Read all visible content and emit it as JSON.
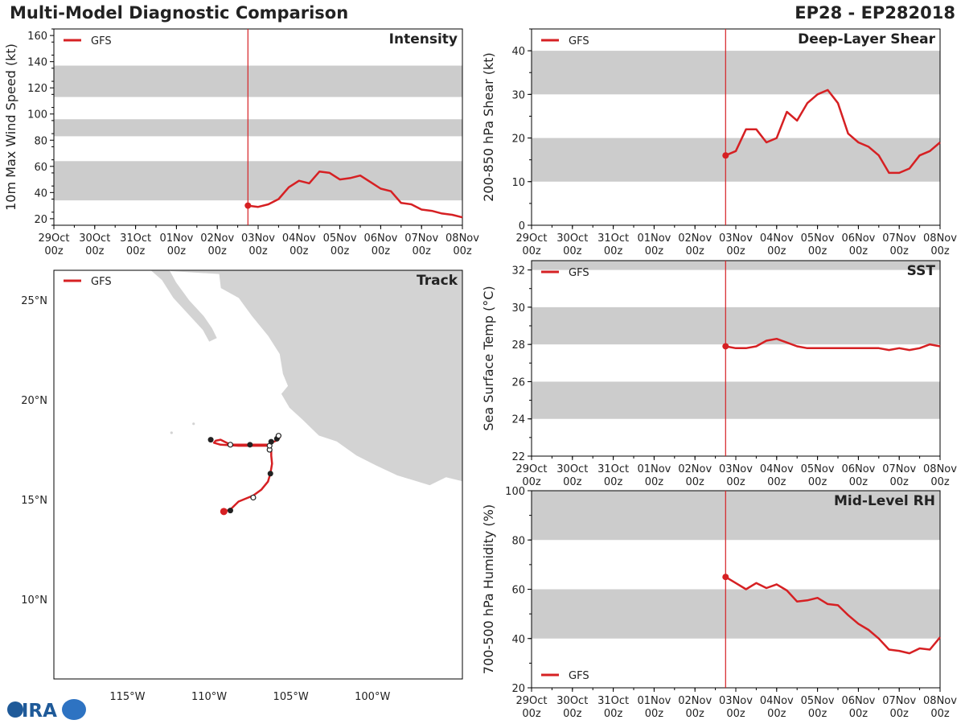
{
  "header": {
    "title": "Multi-Model Diagnostic Comparison",
    "storm": "EP28 - EP282018"
  },
  "logo": {
    "text": "CIRA"
  },
  "colors": {
    "series": "#d62023",
    "shade": "#cccccc",
    "land": "#d3d3d3",
    "axis": "#000000"
  },
  "time_axis": {
    "labels": [
      "29Oct",
      "30Oct",
      "31Oct",
      "01Nov",
      "02Nov",
      "03Nov",
      "04Nov",
      "05Nov",
      "06Nov",
      "07Nov",
      "08Nov"
    ],
    "sublabel": "00z",
    "init_day": 4.75
  },
  "chart_data": [
    {
      "id": "intensity",
      "type": "line",
      "title": "Intensity",
      "ylabel": "10m Max Wind Speed (kt)",
      "ylim": [
        15,
        165
      ],
      "yticks": [
        20,
        40,
        60,
        80,
        100,
        120,
        140,
        160
      ],
      "bands": [
        [
          34,
          64
        ],
        [
          83,
          96
        ],
        [
          113,
          137
        ]
      ],
      "legend": "GFS",
      "legend_position": "top-left",
      "series": [
        {
          "name": "GFS",
          "x": [
            4.75,
            5.0,
            5.25,
            5.5,
            5.75,
            6.0,
            6.25,
            6.5,
            6.75,
            7.0,
            7.25,
            7.5,
            7.75,
            8.0,
            8.25,
            8.5,
            8.75,
            9.0,
            9.25,
            9.5,
            9.75,
            10.0
          ],
          "y": [
            30,
            29,
            31,
            35,
            44,
            49,
            47,
            56,
            55,
            50,
            51,
            53,
            48,
            43,
            41,
            32,
            31,
            27,
            26,
            24,
            23,
            21
          ]
        }
      ]
    },
    {
      "id": "shear",
      "type": "line",
      "title": "Deep-Layer Shear",
      "ylabel": "200-850 hPa Shear (kt)",
      "ylim": [
        0,
        45
      ],
      "yticks": [
        0,
        10,
        20,
        30,
        40
      ],
      "bands": [
        [
          10,
          20
        ],
        [
          30,
          40
        ]
      ],
      "legend": "GFS",
      "legend_position": "top-left",
      "series": [
        {
          "name": "GFS",
          "x": [
            4.75,
            5.0,
            5.25,
            5.5,
            5.75,
            6.0,
            6.25,
            6.5,
            6.75,
            7.0,
            7.25,
            7.5,
            7.75,
            8.0,
            8.25,
            8.5,
            8.75,
            9.0,
            9.25,
            9.5,
            9.75,
            10.0
          ],
          "y": [
            16,
            17,
            22,
            22,
            19,
            20,
            26,
            24,
            28,
            30,
            31,
            28,
            21,
            19,
            18,
            16,
            12,
            12,
            13,
            16,
            17,
            19
          ]
        }
      ]
    },
    {
      "id": "sst",
      "type": "line",
      "title": "SST",
      "ylabel": "Sea Surface Temp (°C)",
      "ylim": [
        22,
        32.5
      ],
      "yticks": [
        22,
        24,
        26,
        28,
        30,
        32
      ],
      "bands": [
        [
          24,
          26
        ],
        [
          28,
          30
        ],
        [
          32,
          32.5
        ]
      ],
      "legend": "GFS",
      "legend_position": "top-left",
      "series": [
        {
          "name": "GFS",
          "x": [
            4.75,
            5.0,
            5.25,
            5.5,
            5.75,
            6.0,
            6.25,
            6.5,
            6.75,
            7.0,
            7.25,
            7.5,
            7.75,
            8.0,
            8.25,
            8.5,
            8.75,
            9.0,
            9.25,
            9.5,
            9.75,
            10.0
          ],
          "y": [
            27.9,
            27.8,
            27.8,
            27.9,
            28.2,
            28.3,
            28.1,
            27.9,
            27.8,
            27.8,
            27.8,
            27.8,
            27.8,
            27.8,
            27.8,
            27.8,
            27.7,
            27.8,
            27.7,
            27.8,
            28.0,
            27.9
          ]
        }
      ]
    },
    {
      "id": "rh",
      "type": "line",
      "title": "Mid-Level RH",
      "ylabel": "700-500 hPa Humidity (%)",
      "ylim": [
        20,
        100
      ],
      "yticks": [
        20,
        40,
        60,
        80,
        100
      ],
      "bands": [
        [
          40,
          60
        ],
        [
          80,
          100
        ]
      ],
      "legend": "GFS",
      "legend_position": "bottom-left",
      "series": [
        {
          "name": "GFS",
          "x": [
            4.75,
            5.0,
            5.25,
            5.5,
            5.75,
            6.0,
            6.25,
            6.5,
            6.75,
            7.0,
            7.25,
            7.5,
            7.75,
            8.0,
            8.25,
            8.5,
            8.75,
            9.0,
            9.25,
            9.5,
            9.75,
            10.0
          ],
          "y": [
            65,
            62.5,
            60,
            62.5,
            60.5,
            62,
            59.5,
            55,
            55.5,
            56.5,
            54,
            53.5,
            49.5,
            46,
            43.5,
            40,
            35.5,
            35,
            34,
            36,
            35.5,
            40.5
          ]
        }
      ]
    },
    {
      "id": "track",
      "type": "scatter",
      "title": "Track",
      "legend": "GFS",
      "legend_position": "top-left",
      "xlim": [
        -119.5,
        -94.5
      ],
      "ylim": [
        6,
        26.5
      ],
      "xticks": [
        {
          "value": -115,
          "label": "115°W"
        },
        {
          "value": -110,
          "label": "110°W"
        },
        {
          "value": -105,
          "label": "105°W"
        },
        {
          "value": -100,
          "label": "100°W"
        }
      ],
      "yticks": [
        {
          "value": 25,
          "label": "25°N"
        },
        {
          "value": 20,
          "label": "20°N"
        },
        {
          "value": 15,
          "label": "15°N"
        },
        {
          "value": 10,
          "label": "10°N"
        }
      ],
      "track": {
        "lon": [
          -109.1,
          -108.7,
          -108.2,
          -107.6,
          -107.3,
          -106.8,
          -106.4,
          -106.25,
          -106.15,
          -106.2,
          -106.2,
          -106.3,
          -106.4,
          -106.7,
          -107.3,
          -108.2,
          -109.3,
          -109.7,
          -109.6,
          -109.3,
          -108.7,
          -107.5,
          -106.3,
          -106.2,
          -105.9,
          -105.7,
          -105.7
        ],
        "lat": [
          14.4,
          14.5,
          14.9,
          15.1,
          15.2,
          15.5,
          15.9,
          16.3,
          16.8,
          17.2,
          17.5,
          17.65,
          17.7,
          17.7,
          17.7,
          17.7,
          17.75,
          17.85,
          17.95,
          18.0,
          17.75,
          17.75,
          17.75,
          17.85,
          17.95,
          18.1,
          18.2
        ]
      },
      "markers": [
        {
          "lon": -109.1,
          "lat": 14.4,
          "kind": "start"
        },
        {
          "lon": -108.7,
          "lat": 14.45,
          "kind": "filled"
        },
        {
          "lon": -107.3,
          "lat": 15.1,
          "kind": "open"
        },
        {
          "lon": -106.25,
          "lat": 16.3,
          "kind": "filled"
        },
        {
          "lon": -106.3,
          "lat": 17.5,
          "kind": "open"
        },
        {
          "lon": -106.3,
          "lat": 17.7,
          "kind": "open"
        },
        {
          "lon": -107.5,
          "lat": 17.75,
          "kind": "filled"
        },
        {
          "lon": -108.7,
          "lat": 17.75,
          "kind": "open"
        },
        {
          "lon": -109.9,
          "lat": 18.0,
          "kind": "filled"
        },
        {
          "lon": -106.2,
          "lat": 17.9,
          "kind": "filled"
        },
        {
          "lon": -105.85,
          "lat": 18.05,
          "kind": "filled"
        },
        {
          "lon": -105.75,
          "lat": 18.2,
          "kind": "open"
        }
      ],
      "land": {
        "mainland": [
          [
            -113.5,
            26.5
          ],
          [
            -94.5,
            26.5
          ],
          [
            -94.5,
            15.9
          ],
          [
            -95.5,
            16.1
          ],
          [
            -96.5,
            15.7
          ],
          [
            -97.5,
            15.95
          ],
          [
            -98.5,
            16.2
          ],
          [
            -99.8,
            16.7
          ],
          [
            -101,
            17.2
          ],
          [
            -102.2,
            17.9
          ],
          [
            -103.3,
            18.2
          ],
          [
            -104.3,
            19.0
          ],
          [
            -105.1,
            19.6
          ],
          [
            -105.6,
            20.3
          ],
          [
            -105.2,
            20.7
          ],
          [
            -105.5,
            21.3
          ],
          [
            -105.7,
            22.3
          ],
          [
            -106.4,
            23.2
          ],
          [
            -107.4,
            24.2
          ],
          [
            -108.2,
            25.1
          ],
          [
            -109.3,
            25.6
          ],
          [
            -109.4,
            26.3
          ]
        ],
        "baja": [
          [
            -113.6,
            26.5
          ],
          [
            -112.4,
            26.5
          ],
          [
            -112.0,
            25.9
          ],
          [
            -111.2,
            25.0
          ],
          [
            -110.3,
            24.2
          ],
          [
            -109.8,
            23.6
          ],
          [
            -109.5,
            23.1
          ],
          [
            -110.0,
            22.9
          ],
          [
            -110.4,
            23.5
          ],
          [
            -111.3,
            24.3
          ],
          [
            -112.2,
            25.1
          ],
          [
            -112.9,
            26.0
          ]
        ],
        "islands": [
          [
            -110.95,
            18.8
          ],
          [
            -112.3,
            18.35
          ]
        ]
      }
    }
  ]
}
